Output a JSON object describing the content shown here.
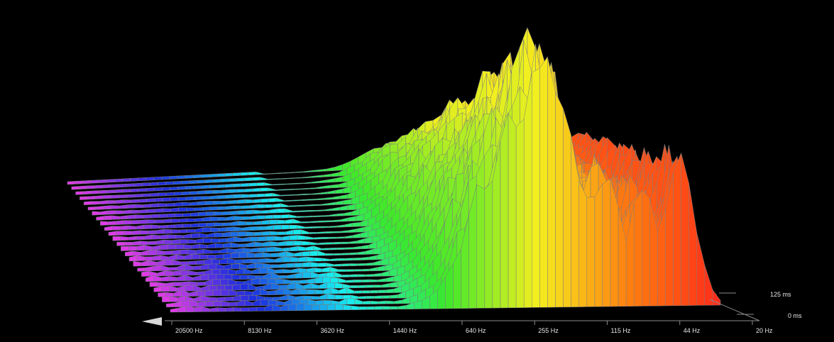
{
  "chart_data": {
    "type": "waterfall",
    "x_axis": {
      "scale": "log",
      "direction": "high-to-low",
      "tick_labels": [
        "20500 Hz",
        "8130 Hz",
        "3620 Hz",
        "1440 Hz",
        "640 Hz",
        "255 Hz",
        "115 Hz",
        "44 Hz",
        "20 Hz"
      ],
      "tick_values": [
        20500,
        8130,
        3620,
        1440,
        640,
        255,
        115,
        44,
        20
      ]
    },
    "time_axis": {
      "tick_labels": [
        "0 ms",
        "125 ms"
      ],
      "tick_values": [
        0,
        125
      ]
    },
    "colormap": [
      "#ff2a1a",
      "#ff7f10",
      "#f4ef1f",
      "#3be82a",
      "#16ecf0",
      "#1c2fe0",
      "#e83ae8"
    ],
    "grid": false,
    "legend": "none",
    "background": "#000000",
    "wireframe_color": "#7c7c7c"
  }
}
